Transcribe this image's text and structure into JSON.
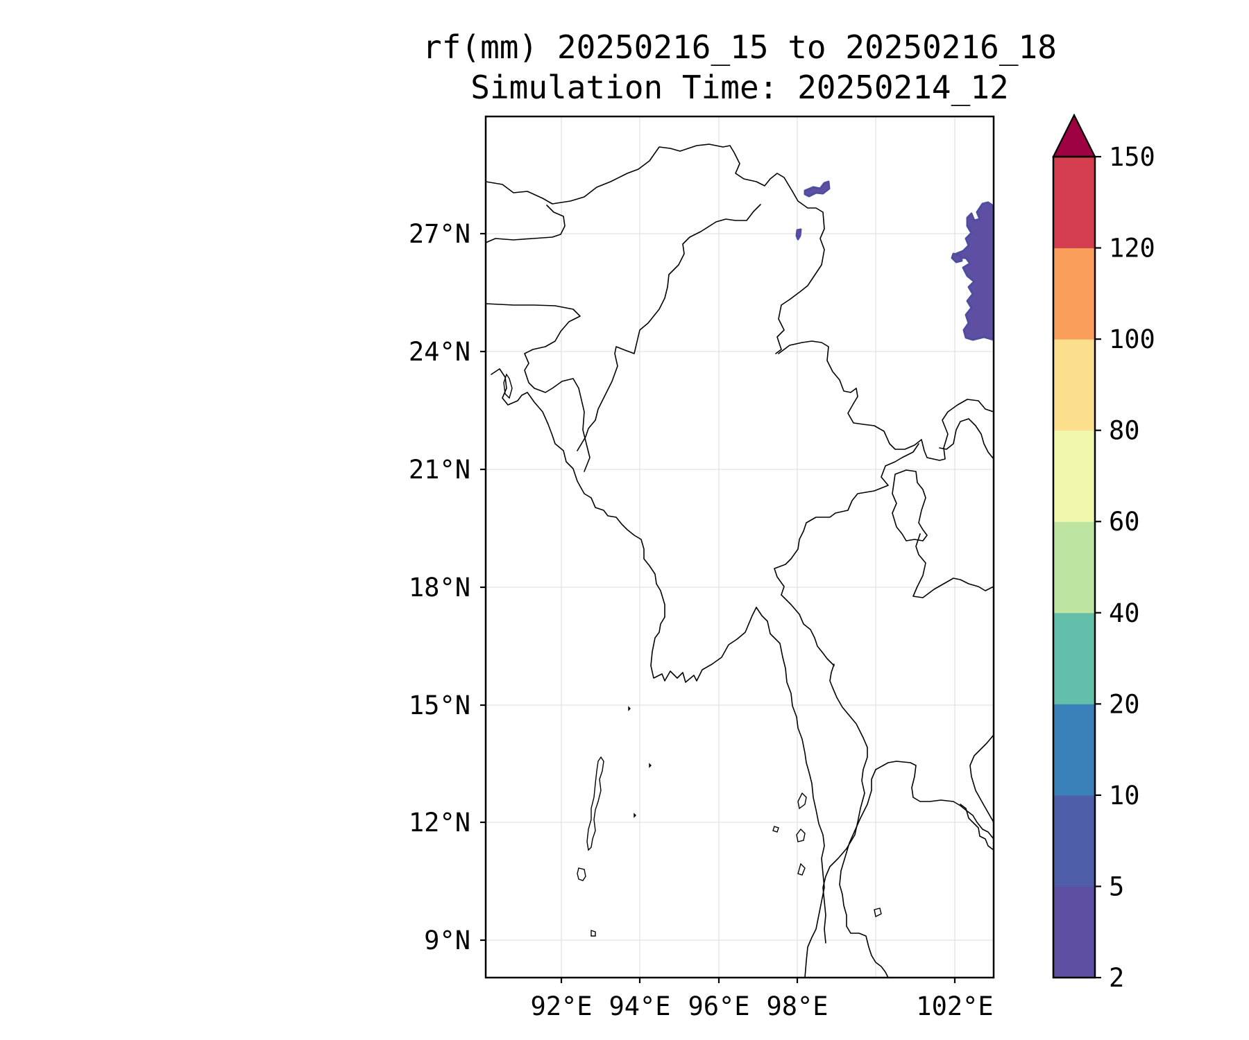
{
  "title": {
    "line1": "rf(mm) 20250216_15 to 20250216_18",
    "line2": "Simulation Time: 20250214_12"
  },
  "map": {
    "lon_ticks": [
      "92°E",
      "94°E",
      "96°E",
      "98°E",
      "102°E"
    ],
    "lat_ticks": [
      "27°N",
      "24°N",
      "21°N",
      "18°N",
      "15°N",
      "12°N",
      "9°N"
    ],
    "grid": true,
    "coastlines_and_borders": true
  },
  "colorbar": {
    "tick_labels": [
      "150",
      "120",
      "100",
      "80",
      "60",
      "40",
      "20",
      "10",
      "5",
      "2"
    ],
    "levels": [
      2,
      5,
      10,
      20,
      40,
      60,
      80,
      100,
      120,
      150
    ],
    "colors": [
      "#5e4fa2",
      "#4f5ea8",
      "#3a80b9",
      "#63bfa9",
      "#bde4a0",
      "#f1f8ad",
      "#fbdf8d",
      "#f99f5b",
      "#d53e4f"
    ],
    "extend_color": "#9e0142",
    "extend": "max"
  },
  "chart_data": {
    "type": "heatmap",
    "title": "rf(mm) 20250216_15 to 20250216_18",
    "subtitle": "Simulation Time: 20250214_12",
    "variable": "rf(mm)",
    "xlim": [
      90,
      103
    ],
    "ylim": [
      8,
      30
    ],
    "x_ticks": [
      92,
      94,
      96,
      98,
      102
    ],
    "y_ticks": [
      27,
      24,
      21,
      18,
      15,
      12,
      9
    ],
    "levels": [
      2,
      5,
      10,
      20,
      40,
      60,
      80,
      100,
      120,
      150
    ],
    "rain_regions": [
      {
        "lon_range": [
          98.1,
          98.8
        ],
        "lat_range": [
          28.0,
          28.4
        ],
        "value_range": [
          2,
          5
        ]
      },
      {
        "lon_range": [
          97.9,
          98.1
        ],
        "lat_range": [
          27.0,
          27.3
        ],
        "value_range": [
          2,
          5
        ]
      },
      {
        "lon_range": [
          101.9,
          103.0
        ],
        "lat_range": [
          24.2,
          28.2
        ],
        "value_range": [
          2,
          10
        ]
      }
    ]
  }
}
